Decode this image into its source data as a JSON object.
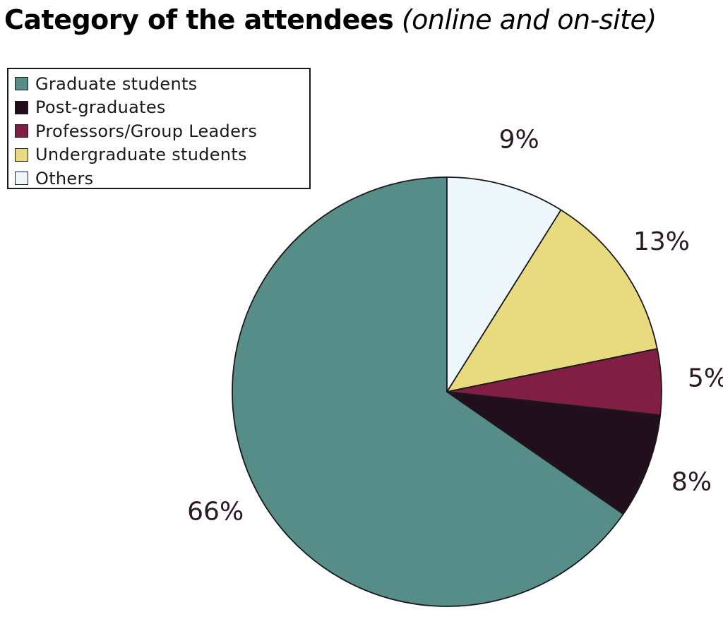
{
  "title": {
    "main": "Category of the attendees",
    "sub": "(online and on-site)"
  },
  "chart_data": {
    "type": "pie",
    "title": "Category of the attendees (online and on-site)",
    "slices": [
      {
        "label": "Graduate students",
        "value": 66,
        "display": "66%",
        "color": "#568d89"
      },
      {
        "label": "Post-graduates",
        "value": 8,
        "display": "8%",
        "color": "#220f1e"
      },
      {
        "label": "Professors/Group Leaders",
        "value": 5,
        "display": "5%",
        "color": "#801e43"
      },
      {
        "label": "Undergraduate students",
        "value": 13,
        "display": "13%",
        "color": "#e8db7f"
      },
      {
        "label": "Others",
        "value": 9,
        "display": "9%",
        "color": "#eef7fc"
      }
    ],
    "legend": "top-left"
  }
}
